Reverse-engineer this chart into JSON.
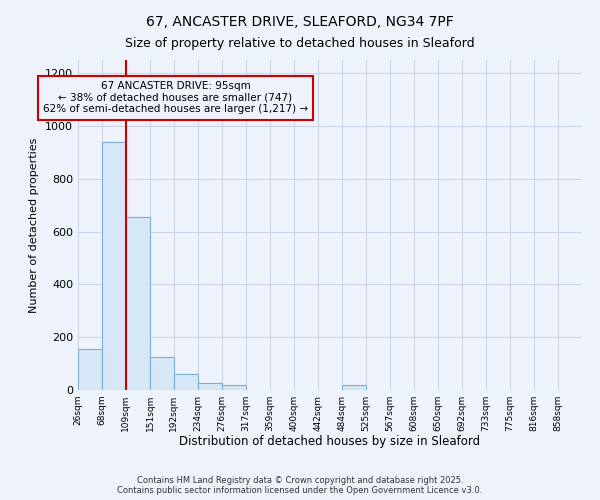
{
  "title_line1": "67, ANCASTER DRIVE, SLEAFORD, NG34 7PF",
  "title_line2": "Size of property relative to detached houses in Sleaford",
  "xlabel": "Distribution of detached houses by size in Sleaford",
  "ylabel": "Number of detached properties",
  "bar_color": "#d6e8f7",
  "bar_edge_color": "#7ab0d4",
  "grid_color": "#c8d4e8",
  "background_color": "#eef2fa",
  "annotation_box_color": "#cc0000",
  "property_line_color": "#cc0000",
  "property_size_bin_index": 2,
  "annotation_text_line1": "67 ANCASTER DRIVE: 95sqm",
  "annotation_text_line2": "← 38% of detached houses are smaller (747)",
  "annotation_text_line3": "62% of semi-detached houses are larger (1,217) →",
  "bin_labels": [
    "26sqm",
    "68sqm",
    "109sqm",
    "151sqm",
    "192sqm",
    "234sqm",
    "276sqm",
    "317sqm",
    "359sqm",
    "400sqm",
    "442sqm",
    "484sqm",
    "525sqm",
    "567sqm",
    "608sqm",
    "650sqm",
    "692sqm",
    "733sqm",
    "775sqm",
    "816sqm",
    "858sqm"
  ],
  "bin_edges": [
    26,
    68,
    109,
    151,
    192,
    234,
    276,
    317,
    359,
    400,
    442,
    484,
    525,
    567,
    608,
    650,
    692,
    733,
    775,
    816,
    858
  ],
  "bar_heights": [
    155,
    940,
    655,
    125,
    60,
    28,
    18,
    0,
    0,
    0,
    0,
    18,
    0,
    0,
    0,
    0,
    0,
    0,
    0,
    0,
    0
  ],
  "ylim": [
    0,
    1250
  ],
  "yticks": [
    0,
    200,
    400,
    600,
    800,
    1000,
    1200
  ],
  "footer_line1": "Contains HM Land Registry data © Crown copyright and database right 2025.",
  "footer_line2": "Contains public sector information licensed under the Open Government Licence v3.0."
}
